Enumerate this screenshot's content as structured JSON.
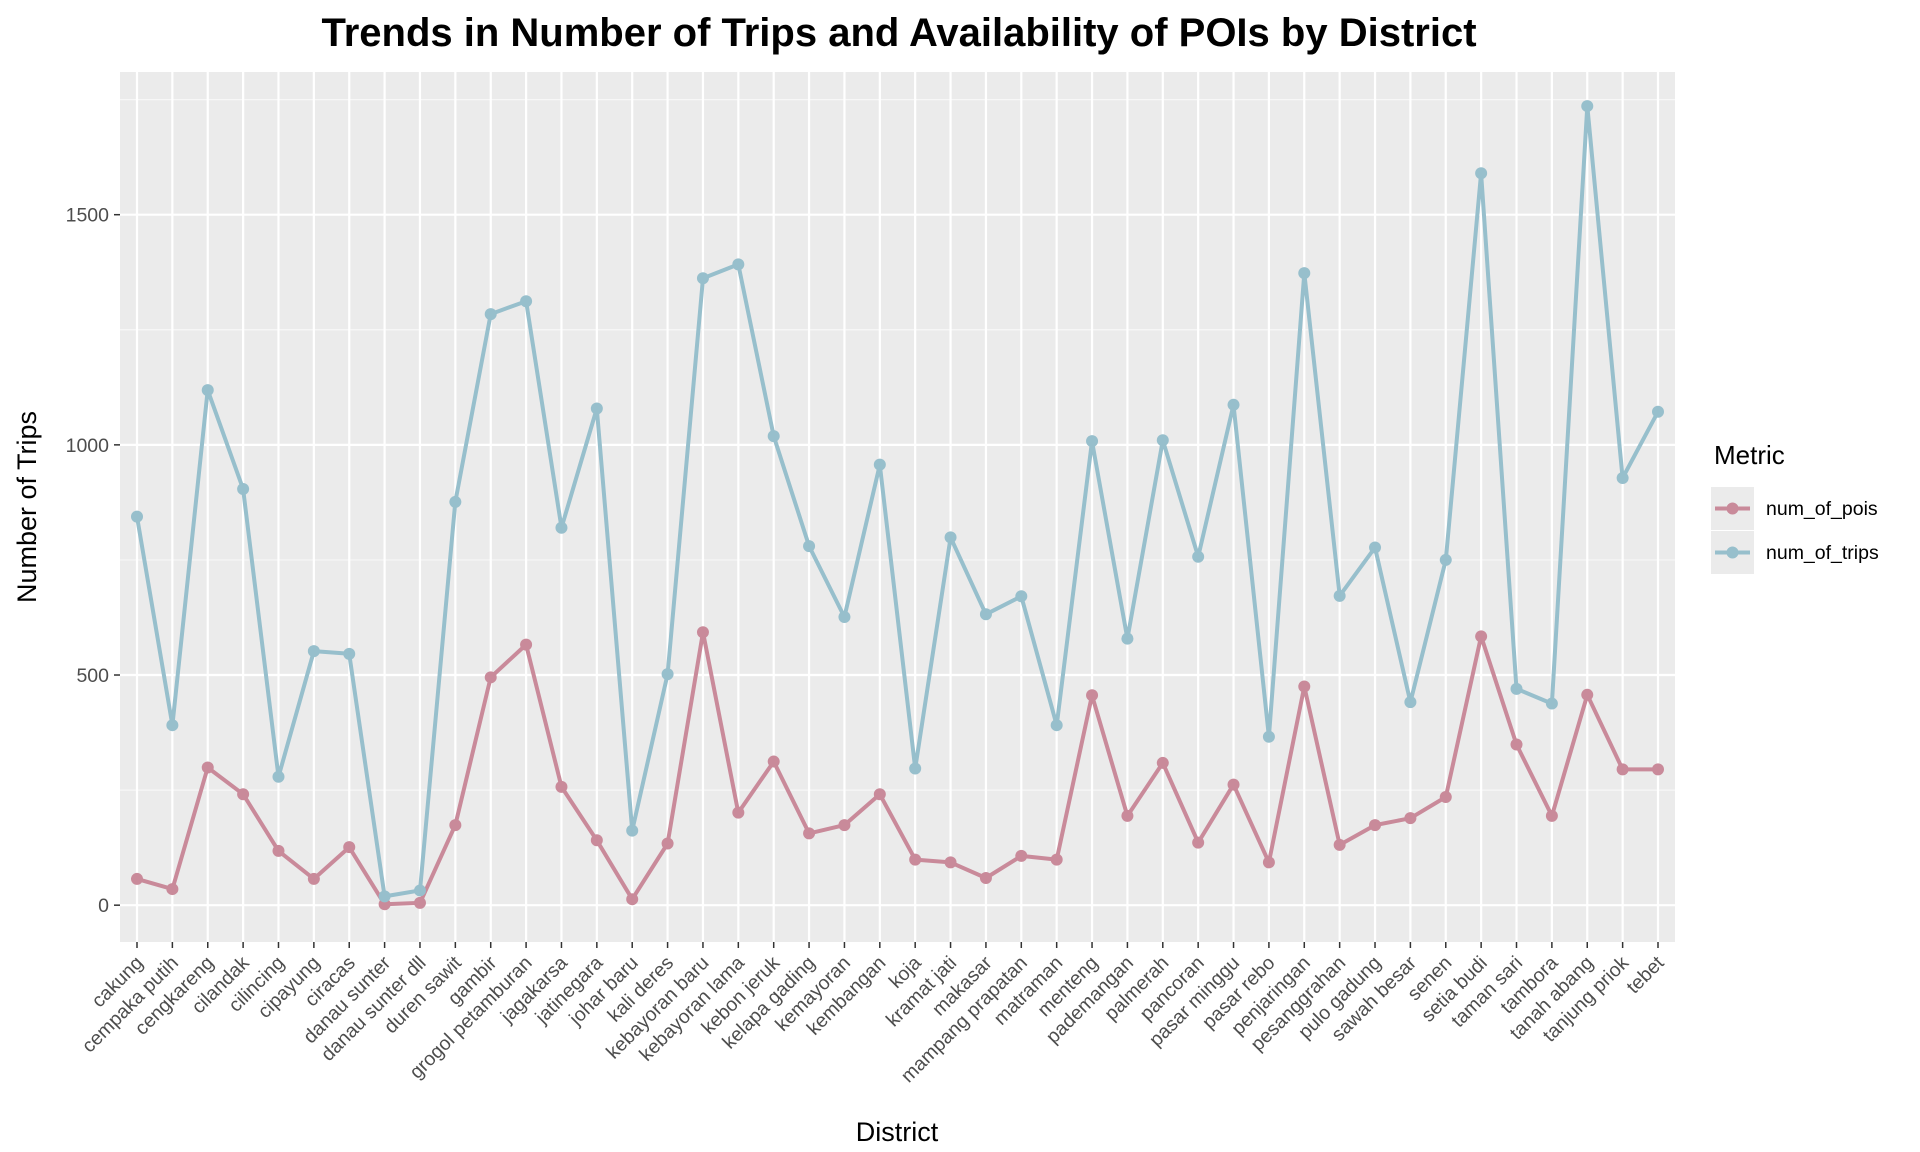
{
  "chart_data": {
    "type": "line",
    "title": "Trends in Number of Trips and Availability of POIs by District",
    "xlabel": "District",
    "ylabel": "Number of Trips",
    "ylim": [
      -80,
      1810
    ],
    "yticks": [
      0,
      500,
      1000,
      1500
    ],
    "grid": true,
    "legend": {
      "title": "Metric",
      "position": "right"
    },
    "categories": [
      "cakung",
      "cempaka putih",
      "cengkareng",
      "cilandak",
      "cilincing",
      "cipayung",
      "ciracas",
      "danau sunter",
      "danau sunter dll",
      "duren sawit",
      "gambir",
      "grogol petamburan",
      "jagakarsa",
      "jatinegara",
      "johar baru",
      "kali deres",
      "kebayoran baru",
      "kebayoran lama",
      "kebon jeruk",
      "kelapa gading",
      "kemayoran",
      "kembangan",
      "koja",
      "kramat jati",
      "makasar",
      "mampang prapatan",
      "matraman",
      "menteng",
      "pademangan",
      "palmerah",
      "pancoran",
      "pasar minggu",
      "pasar rebo",
      "penjaringan",
      "pesanggrahan",
      "pulo gadung",
      "sawah besar",
      "senen",
      "setia budi",
      "taman sari",
      "tambora",
      "tanah abang",
      "tanjung priok",
      "tebet"
    ],
    "series": [
      {
        "name": "num_of_pois",
        "color": "#c98a9a",
        "values": [
          57,
          35,
          299,
          241,
          118,
          57,
          126,
          2,
          5,
          174,
          495,
          566,
          257,
          141,
          13,
          134,
          593,
          201,
          312,
          156,
          174,
          241,
          99,
          93,
          59,
          107,
          99,
          456,
          194,
          309,
          136,
          262,
          93,
          475,
          131,
          174,
          189,
          235,
          584,
          349,
          194,
          457,
          295,
          295
        ]
      },
      {
        "name": "num_of_trips",
        "color": "#97bfcc",
        "values": [
          844,
          391,
          1119,
          904,
          279,
          552,
          546,
          19,
          32,
          876,
          1284,
          1312,
          820,
          1079,
          162,
          502,
          1362,
          1392,
          1019,
          780,
          626,
          957,
          297,
          799,
          632,
          671,
          391,
          1008,
          579,
          1010,
          757,
          1087,
          366,
          1373,
          672,
          777,
          441,
          750,
          1590,
          470,
          438,
          1736,
          928,
          1072
        ]
      }
    ]
  }
}
